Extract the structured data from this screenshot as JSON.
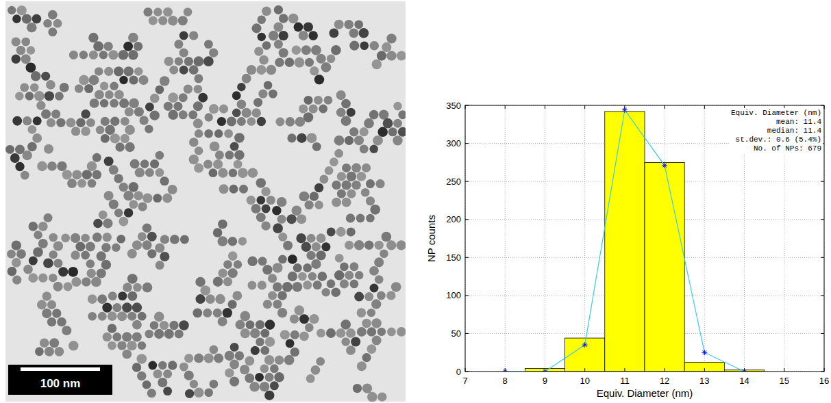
{
  "chart_data": {
    "type": "histogram",
    "x_label": "Equiv. Diameter (nm)",
    "y_label": "NP counts",
    "bins": [
      8.5,
      9.5,
      10.5,
      11.5,
      12.5,
      13.5,
      14.5
    ],
    "series": [
      {
        "type": "bar",
        "color": "#ffff00",
        "values": [
          4,
          44,
          342,
          275,
          12,
          2
        ]
      },
      {
        "type": "line",
        "color": "#33ccee",
        "marker": "star",
        "x": [
          8,
          9,
          10,
          11,
          12,
          13,
          14
        ],
        "values": [
          0,
          0,
          35,
          344,
          271,
          25,
          0
        ]
      }
    ],
    "xlim": [
      7,
      16
    ],
    "xticks": [
      7,
      8,
      9,
      10,
      11,
      12,
      13,
      14,
      15,
      16
    ],
    "ylim": [
      0,
      350
    ],
    "yticks": [
      0,
      50,
      100,
      150,
      200,
      250,
      300,
      350
    ],
    "grid": true,
    "annotations": [
      "Equiv. Diameter (nm)",
      "mean: 11.4",
      "median: 11.4",
      "st.dev.: 0.6 (5.4%)",
      "No. of NPs: 679"
    ]
  },
  "micrograph": {
    "scale_bar": "100 nm"
  }
}
